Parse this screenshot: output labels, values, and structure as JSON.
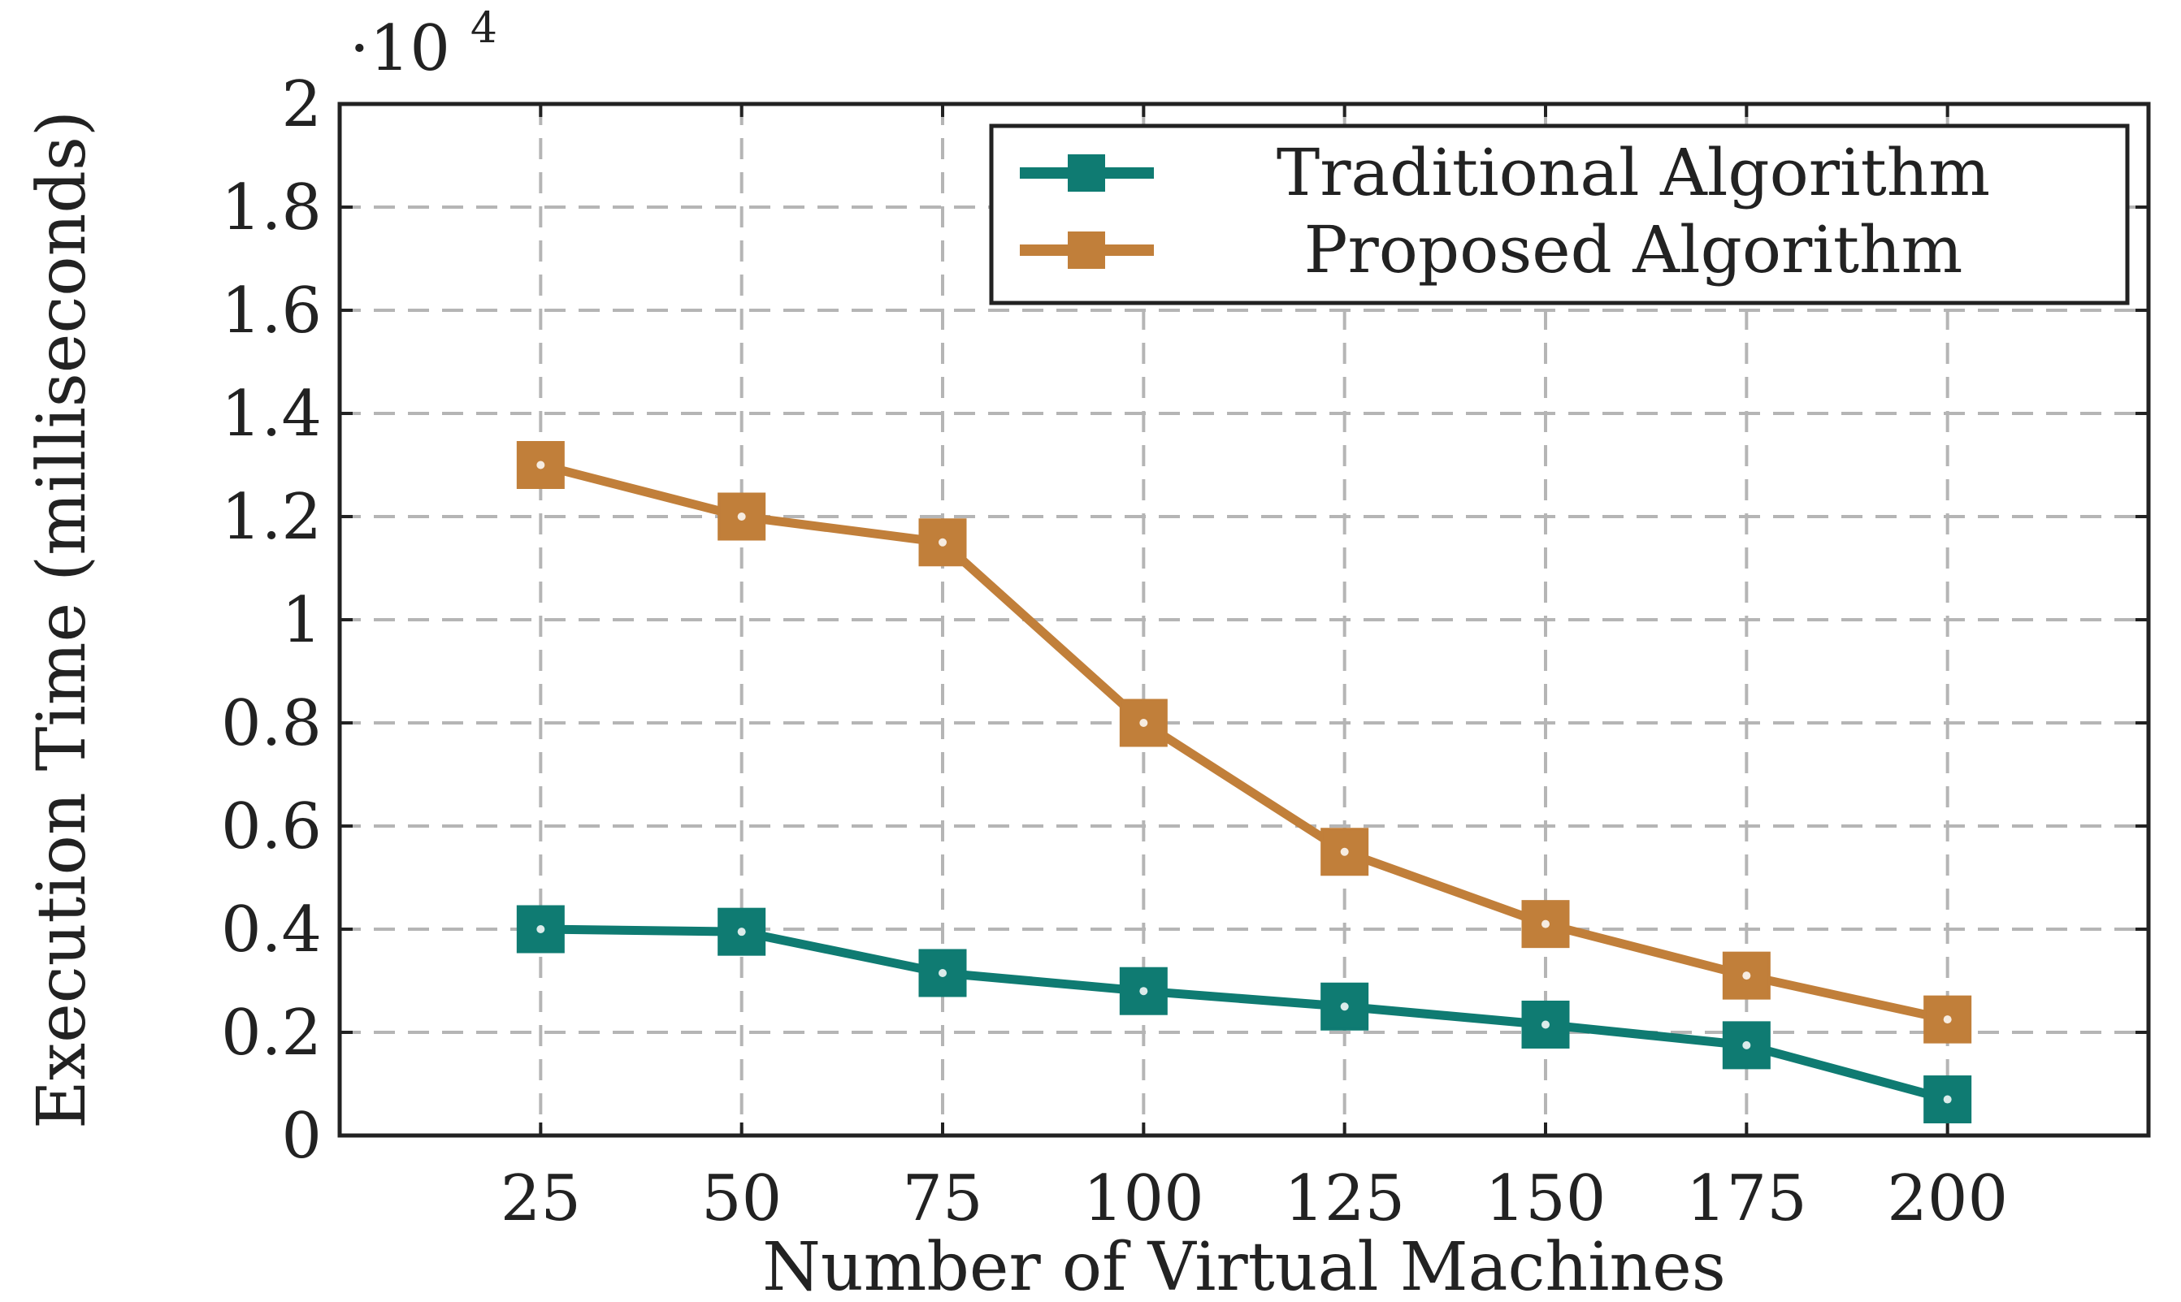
{
  "chart_data": {
    "type": "line",
    "title": "",
    "xlabel": "Number of Virtual Machines",
    "ylabel": "Execution Time (milliseconds)",
    "y_multiplier_label": "·10",
    "y_multiplier_exponent": "4",
    "x": [
      25,
      50,
      75,
      100,
      125,
      150,
      175,
      200
    ],
    "x_tick_labels": [
      "25",
      "50",
      "75",
      "100",
      "125",
      "150",
      "175",
      "200"
    ],
    "xlim": [
      0,
      225
    ],
    "ylim": [
      0,
      2
    ],
    "y_ticks": [
      0,
      0.2,
      0.4,
      0.6,
      0.8,
      1,
      1.2,
      1.4,
      1.6,
      1.8,
      2
    ],
    "y_tick_labels": [
      "0",
      "0.2",
      "0.4",
      "0.6",
      "0.8",
      "1",
      "1.2",
      "1.4",
      "1.6",
      "1.8",
      "2"
    ],
    "grid": true,
    "legend_position": "top-right",
    "series": [
      {
        "name": "Traditional Algorithm",
        "color": "#0f7b72",
        "marker": "square",
        "values": [
          0.4,
          0.395,
          0.315,
          0.28,
          0.25,
          0.215,
          0.175,
          0.07
        ]
      },
      {
        "name": "Proposed Algorithm",
        "color": "#c17f3a",
        "marker": "square",
        "values": [
          1.3,
          1.2,
          1.15,
          0.8,
          0.55,
          0.41,
          0.31,
          0.225
        ]
      }
    ]
  }
}
